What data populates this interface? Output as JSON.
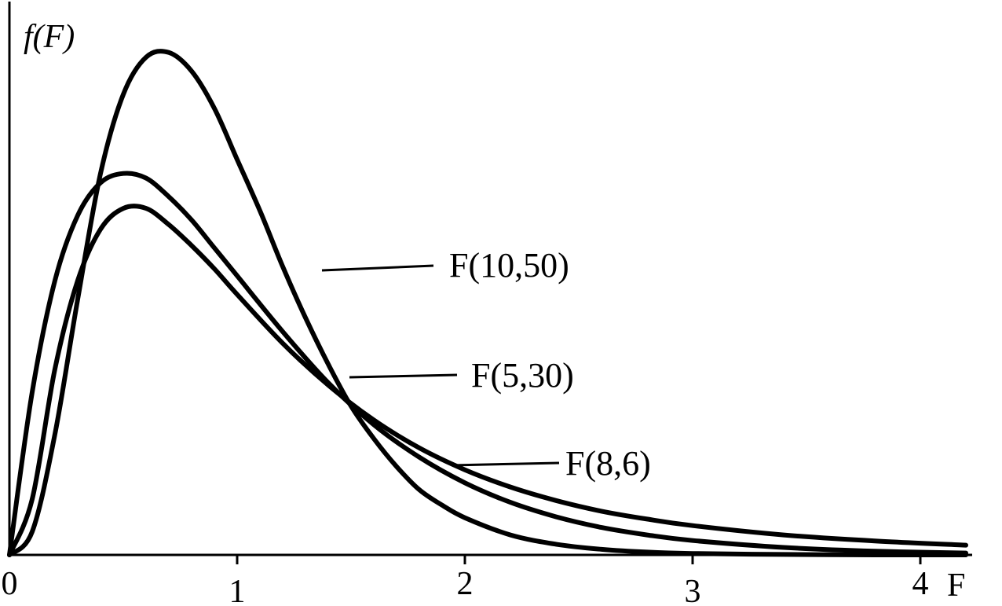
{
  "chart_data": {
    "type": "line",
    "title": "",
    "xlabel": "F",
    "ylabel": "f(F)",
    "xlim": [
      0,
      4.3
    ],
    "ylim": [
      0,
      1.1
    ],
    "x_ticks": [
      0,
      1,
      2,
      3,
      4
    ],
    "x_tick_labels": [
      "0",
      "1",
      "2",
      "3",
      "4"
    ],
    "grid": false,
    "legend": "inline labels with leader lines",
    "series": [
      {
        "name": "F(10,50)",
        "x": [
          0,
          0.1,
          0.2,
          0.3,
          0.4,
          0.5,
          0.6,
          0.7,
          0.8,
          0.9,
          1.0,
          1.1,
          1.2,
          1.3,
          1.4,
          1.5,
          1.6,
          1.7,
          1.8,
          1.9,
          2.0,
          2.2,
          2.4,
          2.6,
          2.8,
          3.0,
          3.4,
          3.8,
          4.2
        ],
        "y": [
          0.0,
          0.05,
          0.26,
          0.55,
          0.82,
          0.99,
          1.07,
          1.08,
          1.04,
          0.96,
          0.85,
          0.74,
          0.62,
          0.51,
          0.41,
          0.32,
          0.25,
          0.19,
          0.14,
          0.107,
          0.08,
          0.043,
          0.023,
          0.012,
          0.006,
          0.003,
          0.001,
          0.0,
          0.0
        ]
      },
      {
        "name": "F(5,30)",
        "x": [
          0,
          0.1,
          0.2,
          0.3,
          0.4,
          0.5,
          0.6,
          0.7,
          0.8,
          0.9,
          1.0,
          1.2,
          1.4,
          1.6,
          1.8,
          2.0,
          2.2,
          2.4,
          2.6,
          2.8,
          3.0,
          3.4,
          3.8,
          4.2
        ],
        "y": [
          0.0,
          0.35,
          0.59,
          0.73,
          0.8,
          0.82,
          0.81,
          0.77,
          0.72,
          0.66,
          0.6,
          0.48,
          0.37,
          0.28,
          0.21,
          0.155,
          0.113,
          0.082,
          0.059,
          0.043,
          0.031,
          0.016,
          0.008,
          0.004
        ]
      },
      {
        "name": "F(8,6)",
        "x": [
          0,
          0.1,
          0.2,
          0.3,
          0.4,
          0.5,
          0.6,
          0.7,
          0.8,
          0.9,
          1.0,
          1.2,
          1.4,
          1.6,
          1.8,
          2.0,
          2.2,
          2.4,
          2.6,
          2.8,
          3.0,
          3.4,
          3.8,
          4.2
        ],
        "y": [
          0.0,
          0.12,
          0.4,
          0.59,
          0.7,
          0.745,
          0.745,
          0.71,
          0.665,
          0.615,
          0.56,
          0.455,
          0.365,
          0.29,
          0.23,
          0.183,
          0.146,
          0.117,
          0.094,
          0.077,
          0.063,
          0.043,
          0.03,
          0.021
        ]
      }
    ]
  }
}
